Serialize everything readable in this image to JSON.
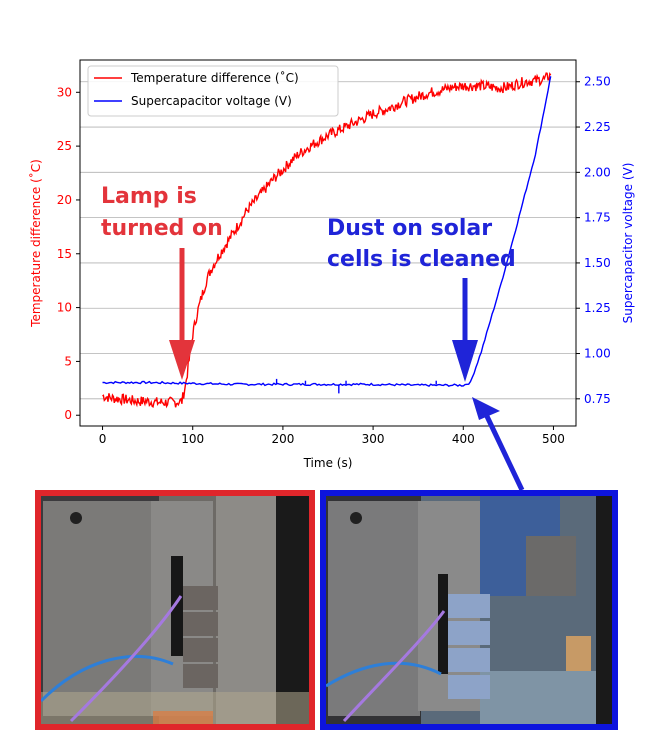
{
  "chart_data": {
    "type": "line",
    "xlabel": "Time (s)",
    "ylabel_left": "Temperature difference (˚C)",
    "ylabel_right": "Supercapacitor voltage (V)",
    "xlim": [
      -25,
      525
    ],
    "ylim_left": [
      -1,
      33
    ],
    "ylim_right": [
      0.6,
      2.62
    ],
    "grid": "horizontal (right axis)",
    "legend_position": "top-left",
    "x_ticks": [
      0,
      100,
      200,
      300,
      400,
      500
    ],
    "y_left_ticks": [
      0,
      5,
      10,
      15,
      20,
      25,
      30
    ],
    "y_right_ticks": [
      0.75,
      1.0,
      1.25,
      1.5,
      1.75,
      2.0,
      2.25,
      2.5
    ],
    "x_tick_labels": [
      "0",
      "100",
      "200",
      "300",
      "400",
      "500"
    ],
    "y_left_tick_labels": [
      "0",
      "5",
      "10",
      "15",
      "20",
      "25",
      "30"
    ],
    "y_right_tick_labels": [
      "0.75",
      "1.00",
      "1.25",
      "1.50",
      "1.75",
      "2.00",
      "2.25",
      "2.50"
    ],
    "series": [
      {
        "name": "Temperature difference (˚C)",
        "axis": "left",
        "color": "#ff0000",
        "x": [
          0,
          10,
          20,
          30,
          40,
          50,
          60,
          70,
          80,
          88,
          92,
          95,
          100,
          105,
          110,
          115,
          120,
          130,
          140,
          150,
          160,
          170,
          180,
          190,
          200,
          210,
          220,
          230,
          240,
          250,
          260,
          270,
          280,
          290,
          300,
          310,
          320,
          330,
          340,
          350,
          360,
          370,
          380,
          390,
          400,
          410,
          420,
          430,
          440,
          450,
          460,
          470,
          480,
          490,
          497
        ],
        "y": [
          1.8,
          1.6,
          1.5,
          1.4,
          1.3,
          1.3,
          1.2,
          1.2,
          1.2,
          1.3,
          2.8,
          4.5,
          7.5,
          9.5,
          11.0,
          12.5,
          13.5,
          15.0,
          16.3,
          17.6,
          19.0,
          20.0,
          21.0,
          22.0,
          22.8,
          23.7,
          24.4,
          25.0,
          25.5,
          26.0,
          26.4,
          26.8,
          27.2,
          27.6,
          28.0,
          28.3,
          28.6,
          29.0,
          29.3,
          29.6,
          29.9,
          30.1,
          30.3,
          30.5,
          30.6,
          30.6,
          30.6,
          30.5,
          30.4,
          30.5,
          30.8,
          31.0,
          31.1,
          31.2,
          31.6
        ]
      },
      {
        "name": "Supercapacitor voltage (V)",
        "axis": "right",
        "color": "#0000ff",
        "x": [
          0,
          50,
          100,
          150,
          200,
          250,
          300,
          350,
          400,
          408,
          420,
          440,
          460,
          480,
          490,
          497
        ],
        "y": [
          0.84,
          0.84,
          0.835,
          0.83,
          0.83,
          0.83,
          0.83,
          0.825,
          0.825,
          0.84,
          1.01,
          1.35,
          1.72,
          2.1,
          2.35,
          2.53
        ]
      }
    ],
    "spikes": [
      {
        "x": 193,
        "y": 0.86
      },
      {
        "x": 225,
        "y": 0.85
      },
      {
        "x": 262,
        "y": 0.78
      },
      {
        "x": 270,
        "y": 0.85
      },
      {
        "x": 370,
        "y": 0.85
      }
    ],
    "annotations": [
      {
        "text_lines": [
          "Lamp is",
          "turned on"
        ],
        "color": "#e3343b",
        "arrow_x": 88
      },
      {
        "text_lines": [
          "Dust on solar",
          "cells is cleaned"
        ],
        "color": "#1f24d8",
        "arrow_x": 402
      }
    ],
    "photos": [
      {
        "label": "dusty-solar-panel-photo",
        "frame_color": "#e0262b"
      },
      {
        "label": "cleaned-solar-panel-photo",
        "frame_color": "#0d14dd"
      }
    ]
  }
}
